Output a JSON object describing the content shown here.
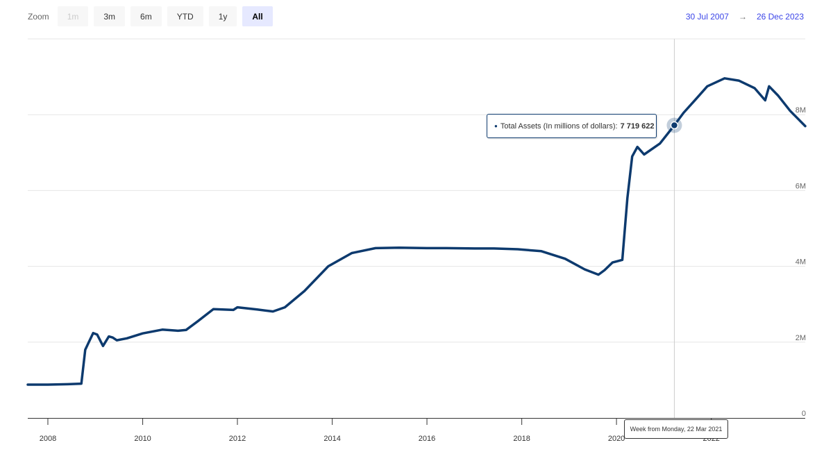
{
  "zoom": {
    "label": "Zoom",
    "buttons": [
      "1m",
      "3m",
      "6m",
      "YTD",
      "1y",
      "All"
    ],
    "active": "All",
    "disabled": [
      "1m"
    ]
  },
  "range": {
    "from": "30 Jul 2007",
    "arrow": "→",
    "to": "26 Dec 2023"
  },
  "tooltip": {
    "series_label": "Total Assets (In millions of dollars):",
    "value": "7 719 622",
    "x_label": "Week from Monday, 22 Mar 2021"
  },
  "colors": {
    "series": "#0d3a6e",
    "grid": "#e6e6e6",
    "accent": "#3b45e8"
  },
  "chart_data": {
    "type": "line",
    "x_range": [
      "2007-07-30",
      "2023-12-26"
    ],
    "ylim": [
      0,
      10000000
    ],
    "yticks": [
      0,
      2000000,
      4000000,
      6000000,
      8000000
    ],
    "ytick_labels": [
      "0",
      "2M",
      "4M",
      "6M",
      "8M"
    ],
    "xticks": [
      2008,
      2010,
      2012,
      2014,
      2016,
      2018,
      2020,
      2022
    ],
    "xtick_labels": [
      "2008",
      "2010",
      "2012",
      "2014",
      "2016",
      "2018",
      "2020",
      "2022"
    ],
    "highlight": {
      "x": "2021-03-22",
      "y": 7719622
    },
    "series": [
      {
        "name": "Total Assets (In millions of dollars)",
        "x": [
          "2007-07-30",
          "2008-01-01",
          "2008-06-01",
          "2008-09-15",
          "2008-10-15",
          "2008-12-15",
          "2009-01-15",
          "2009-03-01",
          "2009-04-15",
          "2009-05-15",
          "2009-06-15",
          "2009-09-01",
          "2010-01-01",
          "2010-06-01",
          "2010-10-01",
          "2010-12-01",
          "2011-03-01",
          "2011-06-30",
          "2011-12-01",
          "2012-01-01",
          "2012-06-01",
          "2012-10-01",
          "2013-01-01",
          "2013-06-01",
          "2013-12-01",
          "2014-06-01",
          "2014-12-01",
          "2015-06-01",
          "2016-01-01",
          "2016-06-01",
          "2017-01-01",
          "2017-06-01",
          "2017-12-01",
          "2018-06-01",
          "2018-12-01",
          "2019-05-01",
          "2019-08-15",
          "2019-10-01",
          "2019-12-01",
          "2020-02-15",
          "2020-03-25",
          "2020-05-01",
          "2020-06-10",
          "2020-08-01",
          "2020-12-01",
          "2021-03-22",
          "2021-06-01",
          "2021-09-01",
          "2021-12-01",
          "2022-04-13",
          "2022-08-01",
          "2022-12-01",
          "2023-02-20",
          "2023-03-22",
          "2023-06-01",
          "2023-09-01",
          "2023-12-26"
        ],
        "y": [
          880000,
          880000,
          890000,
          905000,
          1800000,
          2240000,
          2200000,
          1900000,
          2150000,
          2120000,
          2050000,
          2100000,
          2230000,
          2330000,
          2300000,
          2320000,
          2550000,
          2870000,
          2850000,
          2920000,
          2860000,
          2810000,
          2920000,
          3350000,
          4000000,
          4350000,
          4480000,
          4490000,
          4480000,
          4480000,
          4470000,
          4470000,
          4450000,
          4400000,
          4200000,
          3920000,
          3780000,
          3900000,
          4100000,
          4170000,
          5800000,
          6900000,
          7150000,
          6950000,
          7240000,
          7719622,
          8050000,
          8400000,
          8750000,
          8960000,
          8900000,
          8700000,
          8380000,
          8750000,
          8500000,
          8100000,
          7700000
        ]
      }
    ]
  }
}
